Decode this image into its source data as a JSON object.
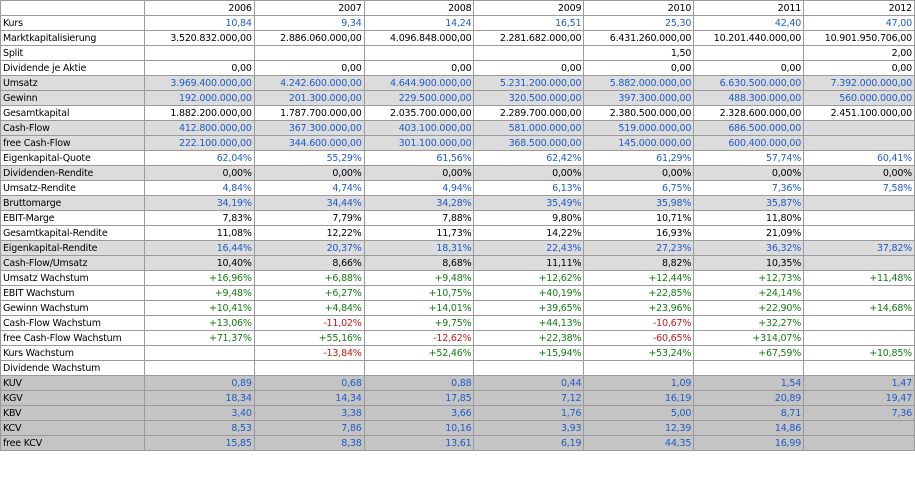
{
  "years": [
    "2006",
    "2007",
    "2008",
    "2009",
    "2010",
    "2011",
    "2012"
  ],
  "colors": {
    "blue": "#1e5cc8",
    "black": "#000000",
    "green": "#137a13",
    "red": "#c81818",
    "light_gray": "#dcdcdc",
    "dark_gray": "#c4c4c4",
    "white": "#ffffff"
  },
  "rows": [
    {
      "label": "Kurs",
      "bg": "w",
      "values": [
        "10,84",
        "9,34",
        "14,24",
        "16,51",
        "25,30",
        "42,40",
        "47,00"
      ],
      "tones": [
        "b",
        "b",
        "b",
        "b",
        "b",
        "b",
        "b"
      ]
    },
    {
      "label": "Marktkapitalisierung",
      "bg": "w",
      "values": [
        "3.520.832.000,00",
        "2.886.060.000,00",
        "4.096.848.000,00",
        "2.281.682.000,00",
        "6.431.260.000,00",
        "10.201.440.000,00",
        "10.901.950.706,00"
      ],
      "tones": [
        "k",
        "k",
        "k",
        "k",
        "k",
        "k",
        "k"
      ]
    },
    {
      "label": "Split",
      "bg": "w",
      "values": [
        "",
        "",
        "",
        "",
        "1,50",
        "",
        "2,00"
      ],
      "tones": [
        "k",
        "k",
        "k",
        "k",
        "k",
        "k",
        "k"
      ]
    },
    {
      "label": "Dividende je Aktie",
      "bg": "w",
      "values": [
        "0,00",
        "0,00",
        "0,00",
        "0,00",
        "0,00",
        "0,00",
        "0,00"
      ],
      "tones": [
        "k",
        "k",
        "k",
        "k",
        "k",
        "k",
        "k"
      ]
    },
    {
      "label": "Umsatz",
      "bg": "g",
      "values": [
        "3.969.400.000,00",
        "4.242.600.000,00",
        "4.644.900.000,00",
        "5.231.200.000,00",
        "5.882.000.000,00",
        "6.630.500.000,00",
        "7.392.000.000,00"
      ],
      "tones": [
        "b",
        "b",
        "b",
        "b",
        "b",
        "b",
        "b"
      ]
    },
    {
      "label": "Gewinn",
      "bg": "g",
      "values": [
        "192.000.000,00",
        "201.300.000,00",
        "229.500.000,00",
        "320.500.000,00",
        "397.300.000,00",
        "488.300.000,00",
        "560.000.000,00"
      ],
      "tones": [
        "b",
        "b",
        "b",
        "b",
        "b",
        "b",
        "b"
      ]
    },
    {
      "label": "Gesamtkapital",
      "bg": "w",
      "values": [
        "1.882.200.000,00",
        "1.787.700.000,00",
        "2.035.700.000,00",
        "2.289.700.000,00",
        "2.380.500.000,00",
        "2.328.600.000,00",
        "2.451.100.000,00"
      ],
      "tones": [
        "k",
        "k",
        "k",
        "k",
        "k",
        "k",
        "k"
      ]
    },
    {
      "label": "Cash-Flow",
      "bg": "g",
      "values": [
        "412.800.000,00",
        "367.300.000,00",
        "403.100.000,00",
        "581.000.000,00",
        "519.000.000,00",
        "686.500.000,00",
        ""
      ],
      "tones": [
        "b",
        "b",
        "b",
        "b",
        "b",
        "b",
        "b"
      ]
    },
    {
      "label": "free Cash-Flow",
      "bg": "g",
      "values": [
        "222.100.000,00",
        "344.600.000,00",
        "301.100.000,00",
        "368.500.000,00",
        "145.000.000,00",
        "600.400.000,00",
        ""
      ],
      "tones": [
        "b",
        "b",
        "b",
        "b",
        "b",
        "b",
        "b"
      ]
    },
    {
      "label": "Eigenkapital-Quote",
      "bg": "w",
      "values": [
        "62,04%",
        "55,29%",
        "61,56%",
        "62,42%",
        "61,29%",
        "57,74%",
        "60,41%"
      ],
      "tones": [
        "b",
        "b",
        "b",
        "b",
        "b",
        "b",
        "b"
      ]
    },
    {
      "label": "Dividenden-Rendite",
      "bg": "g",
      "values": [
        "0,00%",
        "0,00%",
        "0,00%",
        "0,00%",
        "0,00%",
        "0,00%",
        "0,00%"
      ],
      "tones": [
        "k",
        "k",
        "k",
        "k",
        "k",
        "k",
        "k"
      ]
    },
    {
      "label": "Umsatz-Rendite",
      "bg": "w",
      "values": [
        "4,84%",
        "4,74%",
        "4,94%",
        "6,13%",
        "6,75%",
        "7,36%",
        "7,58%"
      ],
      "tones": [
        "b",
        "b",
        "b",
        "b",
        "b",
        "b",
        "b"
      ]
    },
    {
      "label": "Bruttomarge",
      "bg": "g",
      "values": [
        "34,19%",
        "34,44%",
        "34,28%",
        "35,49%",
        "35,98%",
        "35,87%",
        ""
      ],
      "tones": [
        "b",
        "b",
        "b",
        "b",
        "b",
        "b",
        "b"
      ]
    },
    {
      "label": "EBIT-Marge",
      "bg": "w",
      "values": [
        "7,83%",
        "7,79%",
        "7,88%",
        "9,80%",
        "10,71%",
        "11,80%",
        ""
      ],
      "tones": [
        "k",
        "k",
        "k",
        "k",
        "k",
        "k",
        "k"
      ]
    },
    {
      "label": "Gesamtkapital-Rendite",
      "bg": "w",
      "values": [
        "11,08%",
        "12,22%",
        "11,73%",
        "14,22%",
        "16,93%",
        "21,09%",
        ""
      ],
      "tones": [
        "k",
        "k",
        "k",
        "k",
        "k",
        "k",
        "k"
      ]
    },
    {
      "label": "Eigenkapital-Rendite",
      "bg": "g",
      "values": [
        "16,44%",
        "20,37%",
        "18,31%",
        "22,43%",
        "27,23%",
        "36,32%",
        "37,82%"
      ],
      "tones": [
        "b",
        "b",
        "b",
        "b",
        "b",
        "b",
        "b"
      ]
    },
    {
      "label": "Cash-Flow/Umsatz",
      "bg": "g",
      "values": [
        "10,40%",
        "8,66%",
        "8,68%",
        "11,11%",
        "8,82%",
        "10,35%",
        ""
      ],
      "tones": [
        "k",
        "k",
        "k",
        "k",
        "k",
        "k",
        "k"
      ]
    },
    {
      "label": "Umsatz Wachstum",
      "bg": "w",
      "values": [
        "+16,96%",
        "+6,88%",
        "+9,48%",
        "+12,62%",
        "+12,44%",
        "+12,73%",
        "+11,48%"
      ],
      "tones": [
        "p",
        "p",
        "p",
        "p",
        "p",
        "p",
        "p"
      ]
    },
    {
      "label": "EBIT Wachstum",
      "bg": "w",
      "values": [
        "+9,48%",
        "+6,27%",
        "+10,75%",
        "+40,19%",
        "+22,85%",
        "+24,14%",
        ""
      ],
      "tones": [
        "p",
        "p",
        "p",
        "p",
        "p",
        "p",
        "p"
      ]
    },
    {
      "label": "Gewinn Wachstum",
      "bg": "w",
      "values": [
        "+10,41%",
        "+4,84%",
        "+14,01%",
        "+39,65%",
        "+23,96%",
        "+22,90%",
        "+14,68%"
      ],
      "tones": [
        "p",
        "p",
        "p",
        "p",
        "p",
        "p",
        "p"
      ]
    },
    {
      "label": "Cash-Flow Wachstum",
      "bg": "w",
      "values": [
        "+13,06%",
        "-11,02%",
        "+9,75%",
        "+44,13%",
        "-10,67%",
        "+32,27%",
        ""
      ],
      "tones": [
        "p",
        "n",
        "p",
        "p",
        "n",
        "p",
        "p"
      ]
    },
    {
      "label": "free Cash-Flow Wachstum",
      "bg": "w",
      "values": [
        "+71,37%",
        "+55,16%",
        "-12,62%",
        "+22,38%",
        "-60,65%",
        "+314,07%",
        ""
      ],
      "tones": [
        "p",
        "p",
        "n",
        "p",
        "n",
        "p",
        "p"
      ]
    },
    {
      "label": "Kurs Wachstum",
      "bg": "w",
      "values": [
        "",
        "-13,84%",
        "+52,46%",
        "+15,94%",
        "+53,24%",
        "+67,59%",
        "+10,85%"
      ],
      "tones": [
        "p",
        "n",
        "p",
        "p",
        "p",
        "p",
        "p"
      ]
    },
    {
      "label": "Dividende Wachstum",
      "bg": "w",
      "values": [
        "",
        "",
        "",
        "",
        "",
        "",
        ""
      ],
      "tones": [
        "p",
        "p",
        "p",
        "p",
        "p",
        "p",
        "p"
      ]
    },
    {
      "label": "KUV",
      "bg": "d",
      "values": [
        "0,89",
        "0,68",
        "0,88",
        "0,44",
        "1,09",
        "1,54",
        "1,47"
      ],
      "tones": [
        "b",
        "b",
        "b",
        "b",
        "b",
        "b",
        "b"
      ]
    },
    {
      "label": "KGV",
      "bg": "d",
      "values": [
        "18,34",
        "14,34",
        "17,85",
        "7,12",
        "16,19",
        "20,89",
        "19,47"
      ],
      "tones": [
        "b",
        "b",
        "b",
        "b",
        "b",
        "b",
        "b"
      ]
    },
    {
      "label": "KBV",
      "bg": "d",
      "values": [
        "3,40",
        "3,38",
        "3,66",
        "1,76",
        "5,00",
        "8,71",
        "7,36"
      ],
      "tones": [
        "b",
        "b",
        "b",
        "b",
        "b",
        "b",
        "b"
      ]
    },
    {
      "label": "KCV",
      "bg": "d",
      "values": [
        "8,53",
        "7,86",
        "10,16",
        "3,93",
        "12,39",
        "14,86",
        ""
      ],
      "tones": [
        "b",
        "b",
        "b",
        "b",
        "b",
        "b",
        "b"
      ]
    },
    {
      "label": "free KCV",
      "bg": "d",
      "values": [
        "15,85",
        "8,38",
        "13,61",
        "6,19",
        "44,35",
        "16,99",
        ""
      ],
      "tones": [
        "b",
        "b",
        "b",
        "b",
        "b",
        "b",
        "b"
      ]
    }
  ]
}
